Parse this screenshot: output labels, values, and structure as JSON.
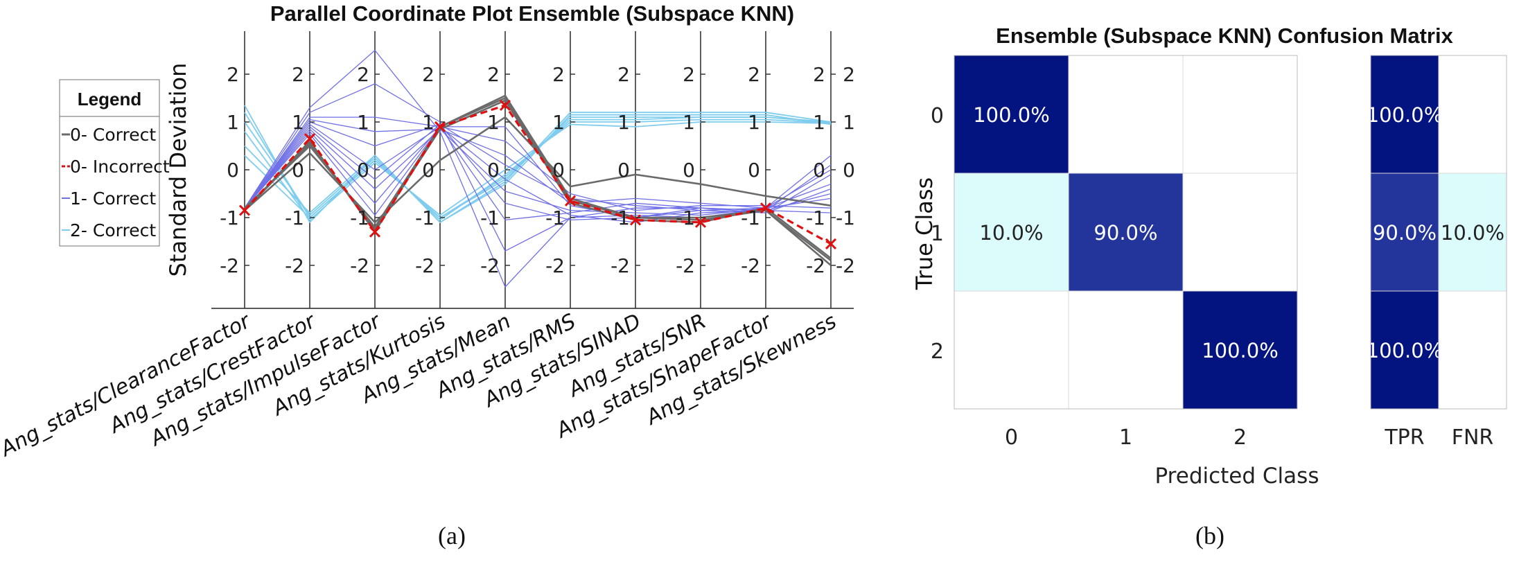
{
  "colors": {
    "class0_correct": "#6a6a6a",
    "class0_incorrect": "#e01010",
    "class1_correct": "#6f6fe8",
    "class2_correct": "#7fcdee",
    "matrix_dark": "#03137f",
    "matrix_mid": "#23349a",
    "matrix_light": "#dcfcfc"
  },
  "chart_data": [
    {
      "type": "parallel-coordinates",
      "title": "Parallel Coordinate Plot Ensemble (Subspace KNN)",
      "ylabel": "Standard Deviation",
      "ylim": [
        -2.9,
        2.9
      ],
      "ticks": [
        2,
        1,
        0,
        -1,
        -2
      ],
      "axes": [
        "Ang_stats/ClearanceFactor",
        "Ang_stats/CrestFactor",
        "Ang_stats/ImpulseFactor",
        "Ang_stats/Kurtosis",
        "Ang_stats/Mean",
        "Ang_stats/RMS",
        "Ang_stats/SINAD",
        "Ang_stats/SNR",
        "Ang_stats/ShapeFactor",
        "Ang_stats/Skewness"
      ],
      "legend": {
        "title": "Legend",
        "placement": "left",
        "entries": [
          "0- Correct",
          "0- Incorrect",
          "1- Correct",
          "2- Correct"
        ]
      },
      "series": [
        {
          "name": "0- Correct",
          "lines": [
            [
              -0.85,
              0.35,
              -1.1,
              0.2,
              1.1,
              -0.35,
              -0.1,
              -0.3,
              -0.55,
              -0.75
            ],
            [
              -0.85,
              0.6,
              -1.3,
              0.9,
              1.5,
              -0.65,
              -1.0,
              -1.05,
              -0.85,
              -1.9
            ],
            [
              -0.85,
              0.55,
              -1.25,
              0.85,
              1.45,
              -0.7,
              -1.05,
              -1.1,
              -0.8,
              -1.85
            ],
            [
              -0.8,
              0.5,
              -1.2,
              0.9,
              1.55,
              -0.6,
              -1.0,
              -1.0,
              -0.85,
              -2.0
            ]
          ]
        },
        {
          "name": "0- Incorrect",
          "lines": [
            [
              -0.85,
              0.65,
              -1.3,
              0.9,
              1.35,
              -0.65,
              -1.05,
              -1.1,
              -0.8,
              -1.55
            ]
          ]
        },
        {
          "name": "1- Correct",
          "lines": [
            [
              -0.8,
              1.3,
              2.5,
              0.8,
              -2.45,
              -1.0,
              -0.95,
              -1.0,
              -0.8,
              0.3
            ],
            [
              -0.8,
              1.2,
              1.8,
              1.0,
              -1.7,
              -1.0,
              -0.8,
              -0.8,
              -0.85,
              0.1
            ],
            [
              -0.8,
              1.1,
              1.1,
              0.9,
              -1.05,
              -0.9,
              -0.7,
              -0.8,
              -0.9,
              -0.1
            ],
            [
              -0.8,
              1.0,
              0.5,
              0.95,
              -0.7,
              -1.05,
              -1.0,
              -0.85,
              -0.8,
              -0.3
            ],
            [
              -0.8,
              0.95,
              0.0,
              0.9,
              -0.2,
              -0.95,
              -1.1,
              -0.9,
              -0.85,
              -0.5
            ],
            [
              -0.8,
              0.85,
              -0.4,
              0.85,
              0.3,
              -0.7,
              -0.6,
              -0.7,
              -0.8,
              -0.6
            ],
            [
              -0.8,
              0.8,
              -0.7,
              0.9,
              0.6,
              -0.5,
              -0.85,
              -0.75,
              -0.75,
              -0.8
            ],
            [
              -0.8,
              0.75,
              -0.95,
              0.9,
              0.9,
              -0.75,
              -1.0,
              -0.8,
              -0.85,
              -0.9
            ],
            [
              -0.8,
              1.05,
              0.8,
              0.85,
              -0.45,
              -0.85,
              -0.9,
              -0.95,
              -0.8,
              0.0
            ],
            [
              -0.8,
              0.9,
              -0.2,
              0.95,
              0.1,
              -0.6,
              -0.75,
              -0.85,
              -0.9,
              -0.4
            ]
          ]
        },
        {
          "name": "2- Correct",
          "lines": [
            [
              1.35,
              -1.1,
              0.3,
              -1.1,
              -0.3,
              1.15,
              1.15,
              1.15,
              1.15,
              0.95
            ],
            [
              1.2,
              -1.0,
              0.2,
              -1.0,
              -0.2,
              1.1,
              1.1,
              1.1,
              1.1,
              1.0
            ],
            [
              1.0,
              -0.95,
              0.25,
              -1.05,
              -0.1,
              1.0,
              1.0,
              1.05,
              1.05,
              0.98
            ],
            [
              0.8,
              -1.05,
              0.15,
              -0.95,
              0.0,
              0.95,
              0.9,
              1.0,
              1.0,
              0.97
            ],
            [
              0.5,
              -0.9,
              0.3,
              -1.1,
              -0.25,
              1.2,
              1.2,
              1.2,
              1.2,
              1.0
            ],
            [
              0.3,
              -1.0,
              0.2,
              -1.0,
              -0.15,
              1.05,
              1.05,
              1.1,
              1.1,
              0.99
            ]
          ]
        }
      ]
    },
    {
      "type": "heatmap",
      "title": "Ensemble (Subspace KNN) Confusion Matrix",
      "xlabel": "Predicted Class",
      "ylabel": "True Class",
      "rows": [
        "0",
        "1",
        "2"
      ],
      "cols": [
        "0",
        "1",
        "2"
      ],
      "values": [
        [
          "100.0%",
          "",
          ""
        ],
        [
          "10.0%",
          "90.0%",
          ""
        ],
        [
          "",
          "",
          "100.0%"
        ]
      ],
      "rate_columns": [
        "TPR",
        "FNR"
      ],
      "rate_values": [
        [
          "100.0%",
          ""
        ],
        [
          "90.0%",
          "10.0%"
        ],
        [
          "100.0%",
          ""
        ]
      ]
    }
  ],
  "captions": [
    "(a)",
    "(b)"
  ]
}
